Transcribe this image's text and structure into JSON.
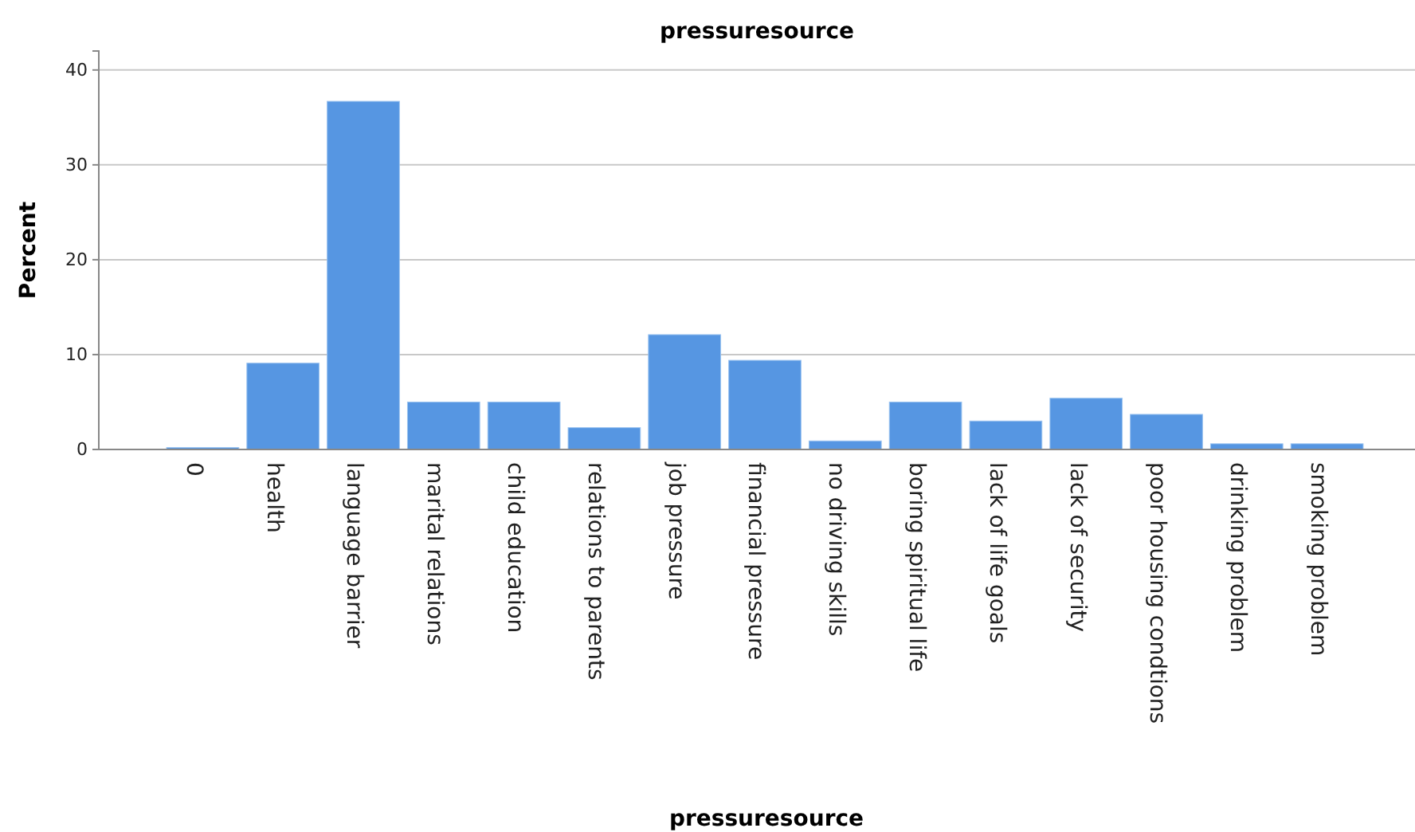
{
  "chart_data": {
    "type": "bar",
    "title": "pressuresource",
    "xlabel": "pressuresource",
    "ylabel": "Percent",
    "categories": [
      "0",
      "health",
      "language barrier",
      "marital relations",
      "child education",
      "relations to parents",
      "job pressure",
      "financial pressure",
      "no driving skills",
      "boring spiritual life",
      "lack of life goals",
      "lack of security",
      "poor housing condtions",
      "drinking problem",
      "smoking problem"
    ],
    "values": [
      0.2,
      9.1,
      36.7,
      5.0,
      5.0,
      2.3,
      12.1,
      9.4,
      0.9,
      5.0,
      3.0,
      5.4,
      3.7,
      0.6,
      0.6
    ],
    "color": "#5696e2",
    "ylim": [
      0,
      42
    ],
    "yticks": [
      0,
      10,
      20,
      30,
      40
    ],
    "grid": "y"
  }
}
